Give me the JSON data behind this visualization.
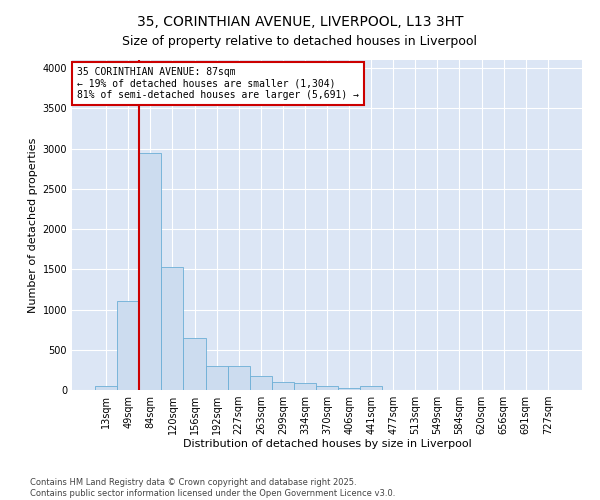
{
  "title": "35, CORINTHIAN AVENUE, LIVERPOOL, L13 3HT",
  "subtitle": "Size of property relative to detached houses in Liverpool",
  "xlabel": "Distribution of detached houses by size in Liverpool",
  "ylabel": "Number of detached properties",
  "bar_color": "#ccdcef",
  "bar_edge_color": "#6baed6",
  "background_color": "#dce6f5",
  "grid_color": "#ffffff",
  "fig_background": "#ffffff",
  "categories": [
    "13sqm",
    "49sqm",
    "84sqm",
    "120sqm",
    "156sqm",
    "192sqm",
    "227sqm",
    "263sqm",
    "299sqm",
    "334sqm",
    "370sqm",
    "406sqm",
    "441sqm",
    "477sqm",
    "513sqm",
    "549sqm",
    "584sqm",
    "620sqm",
    "656sqm",
    "691sqm",
    "727sqm"
  ],
  "values": [
    50,
    1100,
    2950,
    1530,
    650,
    300,
    295,
    175,
    95,
    85,
    50,
    28,
    48,
    4,
    4,
    4,
    4,
    2,
    2,
    2,
    2
  ],
  "red_line_index": 2,
  "annotation_text": "35 CORINTHIAN AVENUE: 87sqm\n← 19% of detached houses are smaller (1,304)\n81% of semi-detached houses are larger (5,691) →",
  "annotation_box_color": "#ffffff",
  "annotation_edge_color": "#cc0000",
  "red_line_color": "#cc0000",
  "ylim": [
    0,
    4100
  ],
  "yticks": [
    0,
    500,
    1000,
    1500,
    2000,
    2500,
    3000,
    3500,
    4000
  ],
  "footnote1": "Contains HM Land Registry data © Crown copyright and database right 2025.",
  "footnote2": "Contains public sector information licensed under the Open Government Licence v3.0.",
  "title_fontsize": 10,
  "subtitle_fontsize": 9,
  "axis_label_fontsize": 8,
  "tick_fontsize": 7,
  "annotation_fontsize": 7,
  "footnote_fontsize": 6
}
